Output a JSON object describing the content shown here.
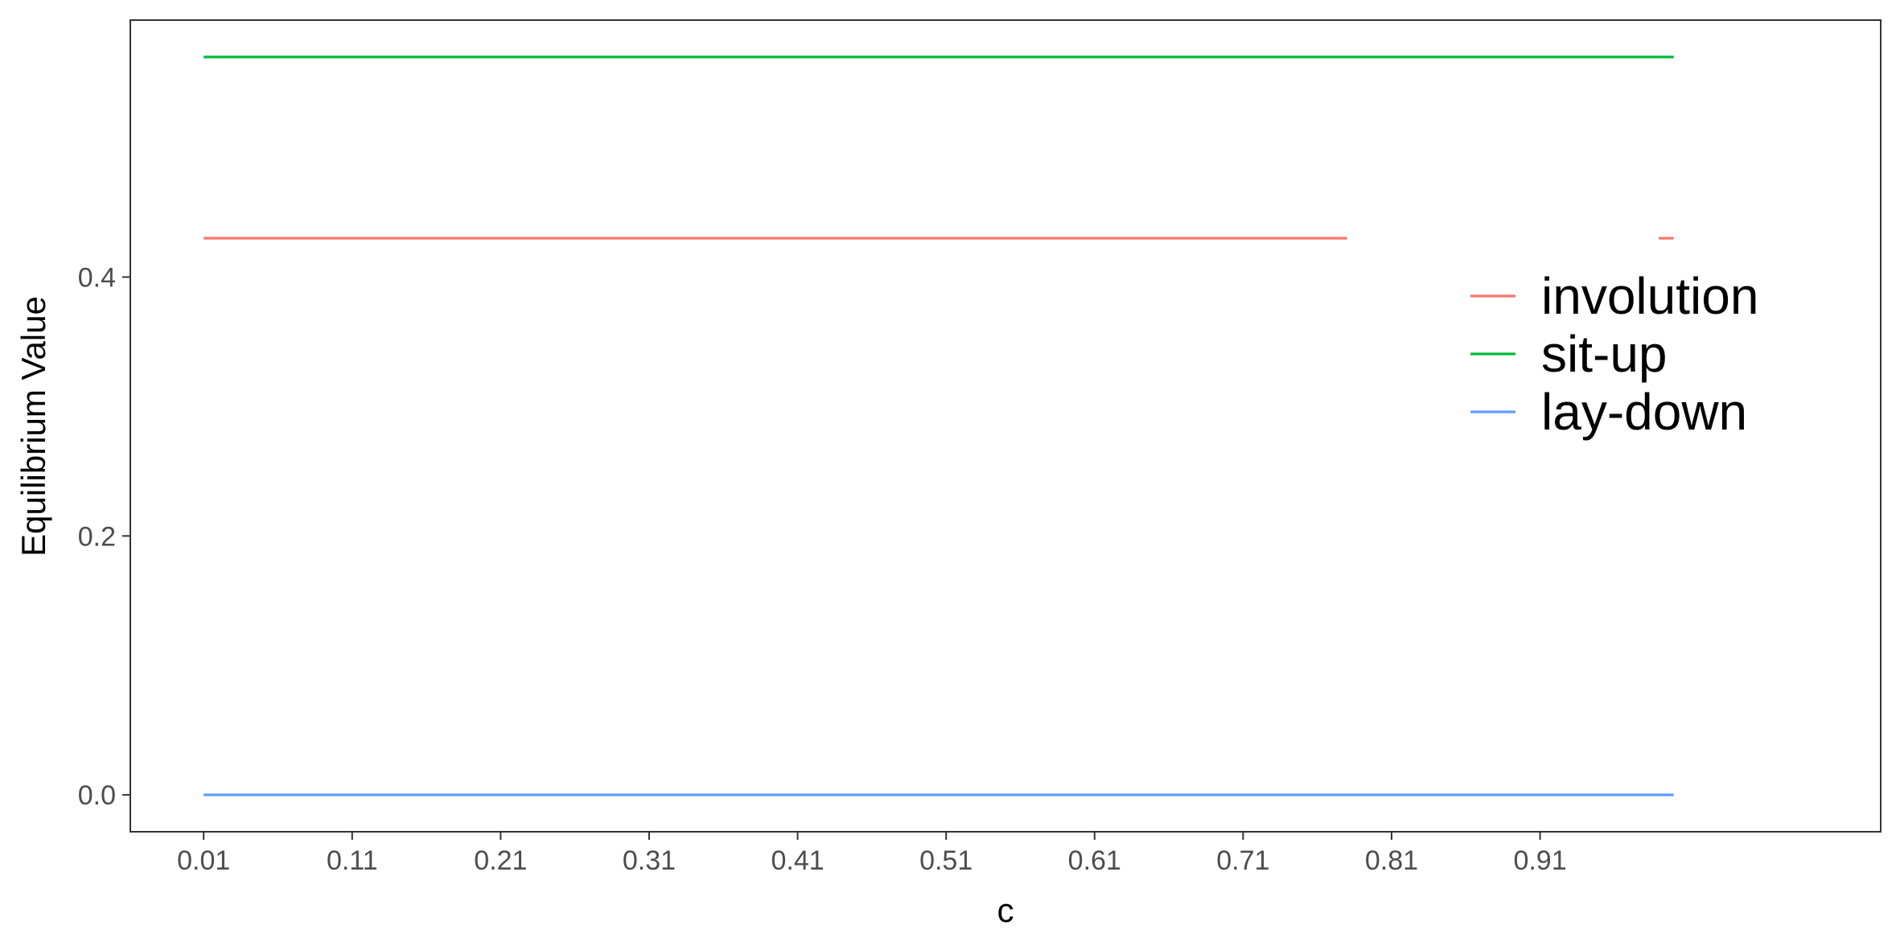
{
  "chart_data": {
    "type": "line",
    "title": "",
    "xlabel": "c",
    "ylabel": "Equilibrium Value",
    "xlim": [
      -0.0394,
      1.1394
    ],
    "ylim": [
      -0.0285,
      0.5985
    ],
    "x_ticks": [
      0.01,
      0.11,
      0.21,
      0.31,
      0.41,
      0.51,
      0.61,
      0.71,
      0.81,
      0.91
    ],
    "x_tick_labels": [
      "0.01",
      "0.11",
      "0.21",
      "0.31",
      "0.41",
      "0.51",
      "0.61",
      "0.71",
      "0.81",
      "0.91"
    ],
    "y_ticks": [
      0.0,
      0.2,
      0.4
    ],
    "y_tick_labels": [
      "0.0",
      "0.2",
      "0.4"
    ],
    "grid": false,
    "legend_position": "right",
    "series": [
      {
        "name": "involution",
        "color": "#F8766D",
        "segments": [
          {
            "x": [
              0.01,
              0.78
            ],
            "y": [
              0.43,
              0.43
            ]
          },
          {
            "x": [
              0.99,
              1.0
            ],
            "y": [
              0.43,
              0.43
            ]
          }
        ]
      },
      {
        "name": "sit-up",
        "color": "#00BA38",
        "segments": [
          {
            "x": [
              0.01,
              1.0
            ],
            "y": [
              0.57,
              0.57
            ]
          }
        ]
      },
      {
        "name": "lay-down",
        "color": "#619CFF",
        "segments": [
          {
            "x": [
              0.01,
              1.0
            ],
            "y": [
              0.0,
              0.0
            ]
          }
        ]
      }
    ]
  }
}
